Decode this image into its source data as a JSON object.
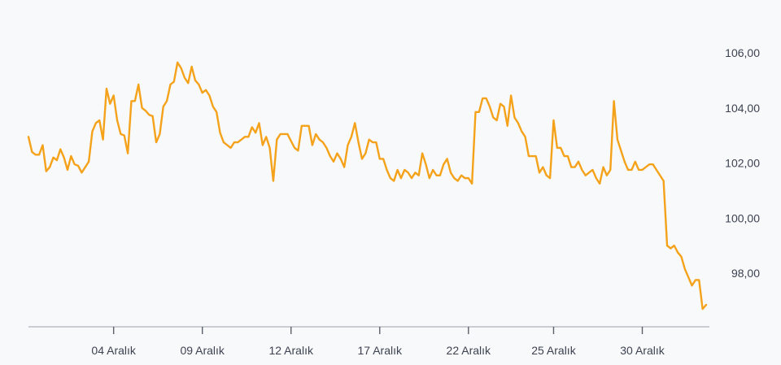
{
  "chart_data": {
    "type": "line",
    "title": "",
    "xlabel": "",
    "ylabel": "",
    "y_axis_position": "right",
    "ylim": [
      96.1,
      106.8
    ],
    "y_ticks": [
      "106,00",
      "104,00",
      "102,00",
      "100,00",
      "98,00"
    ],
    "y_tick_values": [
      106,
      104,
      102,
      100,
      98
    ],
    "x_ticks": [
      "04 Aralık",
      "09 Aralık",
      "12 Aralık",
      "17 Aralık",
      "22 Aralık",
      "25 Aralık",
      "30 Aralık"
    ],
    "x_tick_index": [
      24,
      49,
      74,
      99,
      124,
      148,
      173
    ],
    "grid": false,
    "line_color": "#f5a21b",
    "series": [
      {
        "values": [
          102.95,
          102.4,
          102.3,
          102.3,
          102.65,
          101.7,
          101.85,
          102.2,
          102.1,
          102.5,
          102.2,
          101.75,
          102.25,
          101.95,
          101.9,
          101.65,
          101.85,
          102.05,
          103.15,
          103.45,
          103.55,
          102.85,
          104.7,
          104.15,
          104.45,
          103.55,
          103.05,
          103.0,
          102.35,
          104.25,
          104.25,
          104.85,
          104.0,
          103.9,
          103.75,
          103.7,
          102.75,
          103.05,
          104.05,
          104.25,
          104.85,
          104.95,
          105.65,
          105.45,
          105.1,
          104.9,
          105.5,
          105.0,
          104.85,
          104.55,
          104.65,
          104.45,
          104.05,
          103.85,
          103.1,
          102.75,
          102.65,
          102.55,
          102.75,
          102.75,
          102.85,
          102.95,
          102.95,
          103.3,
          103.1,
          103.45,
          102.65,
          102.95,
          102.55,
          101.35,
          102.85,
          103.05,
          103.05,
          103.05,
          102.8,
          102.55,
          102.45,
          103.35,
          103.35,
          103.35,
          102.65,
          103.05,
          102.85,
          102.75,
          102.55,
          102.25,
          102.05,
          102.35,
          102.15,
          101.85,
          102.65,
          102.95,
          103.45,
          102.75,
          102.15,
          102.35,
          102.85,
          102.75,
          102.75,
          102.15,
          102.15,
          101.75,
          101.45,
          101.35,
          101.75,
          101.45,
          101.75,
          101.65,
          101.45,
          101.65,
          101.55,
          102.35,
          101.95,
          101.45,
          101.75,
          101.55,
          101.55,
          101.95,
          102.15,
          101.65,
          101.45,
          101.35,
          101.55,
          101.45,
          101.45,
          101.25,
          103.85,
          103.85,
          104.35,
          104.35,
          104.05,
          103.65,
          103.55,
          104.15,
          104.05,
          103.35,
          104.45,
          103.65,
          103.45,
          103.15,
          102.95,
          102.25,
          102.25,
          102.25,
          101.65,
          101.85,
          101.55,
          101.45,
          103.55,
          102.55,
          102.55,
          102.25,
          102.25,
          101.85,
          101.85,
          102.05,
          101.75,
          101.55,
          101.65,
          101.75,
          101.45,
          101.25,
          101.85,
          101.55,
          101.75,
          104.25,
          102.85,
          102.45,
          102.05,
          101.75,
          101.75,
          102.05,
          101.75,
          101.75,
          101.85,
          101.95,
          101.95,
          101.75,
          101.55,
          101.35,
          99.0,
          98.9,
          99.0,
          98.75,
          98.6,
          98.15,
          97.85,
          97.55,
          97.75,
          97.75,
          96.7,
          96.85
        ]
      }
    ]
  }
}
